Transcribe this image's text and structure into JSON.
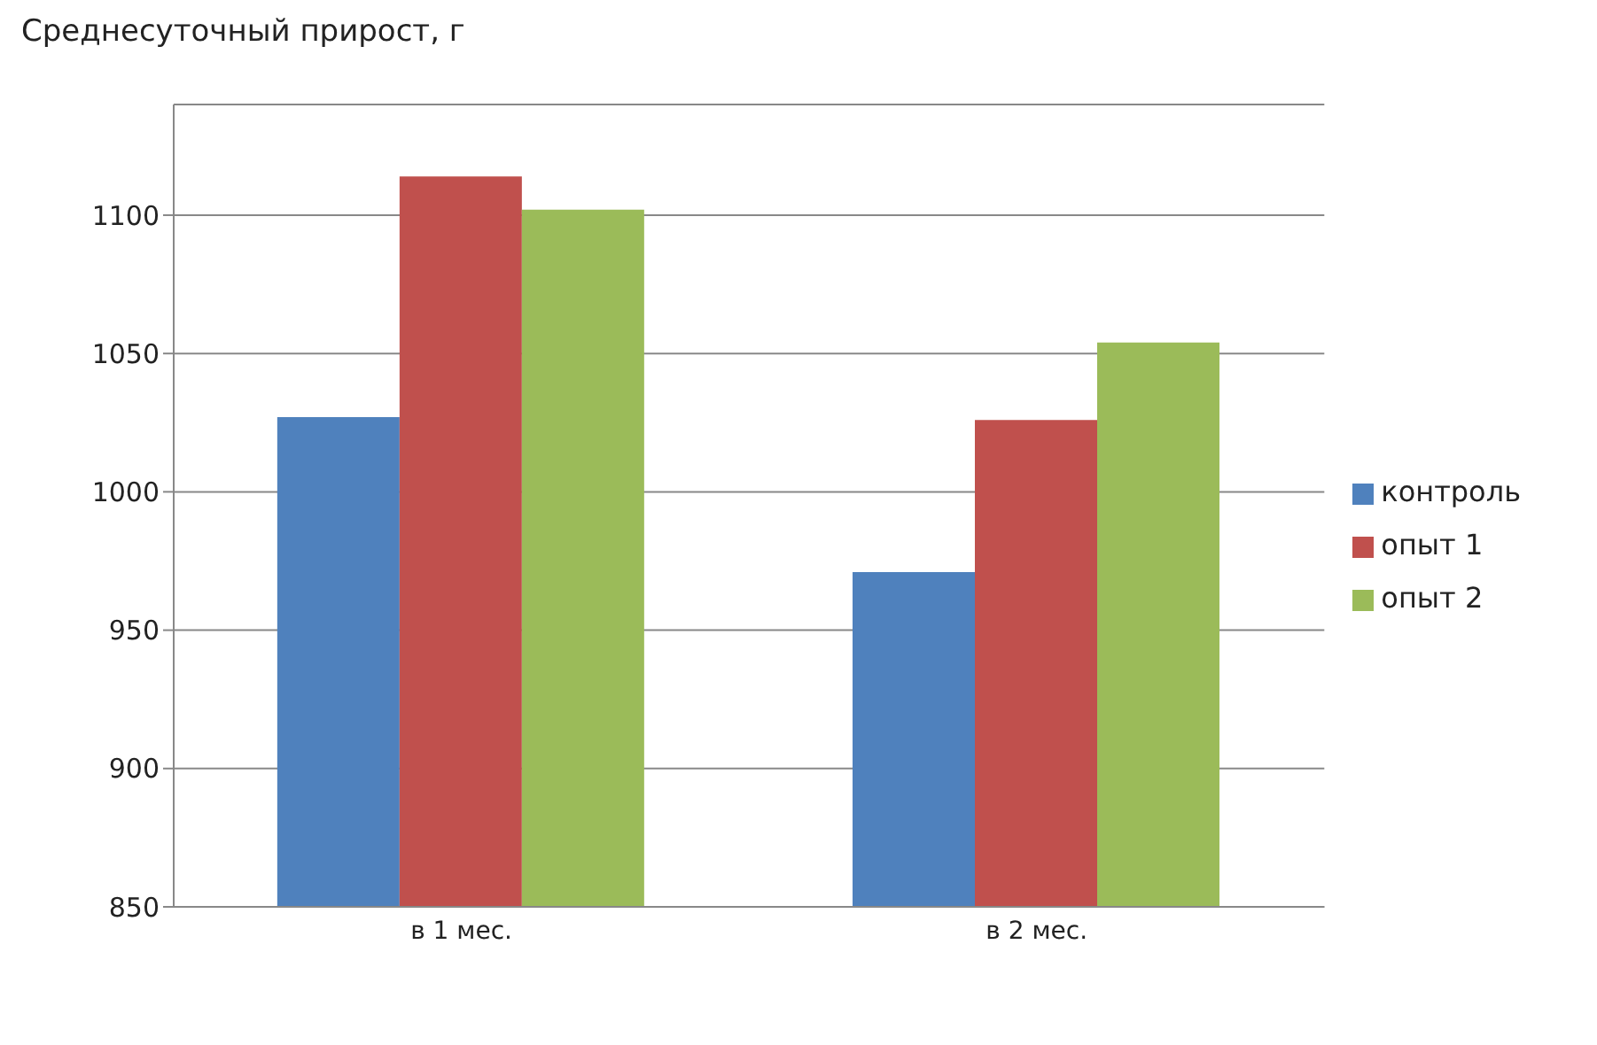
{
  "chart_data": {
    "type": "bar",
    "title": "Среднесуточный прирост, г",
    "categories": [
      "в 1 мес.",
      "в 2 мес."
    ],
    "series": [
      {
        "name": "контроль",
        "color": "#4f81bd",
        "values": [
          1027,
          971
        ]
      },
      {
        "name": "опыт 1",
        "color": "#c0504d",
        "values": [
          1114,
          1026
        ]
      },
      {
        "name": "опыт 2",
        "color": "#9bbb59",
        "values": [
          1102,
          1054
        ]
      }
    ],
    "ylim": [
      850,
      1140
    ],
    "yticks": [
      850,
      900,
      950,
      1000,
      1050,
      1100
    ],
    "grid": "y",
    "legend": "right"
  }
}
